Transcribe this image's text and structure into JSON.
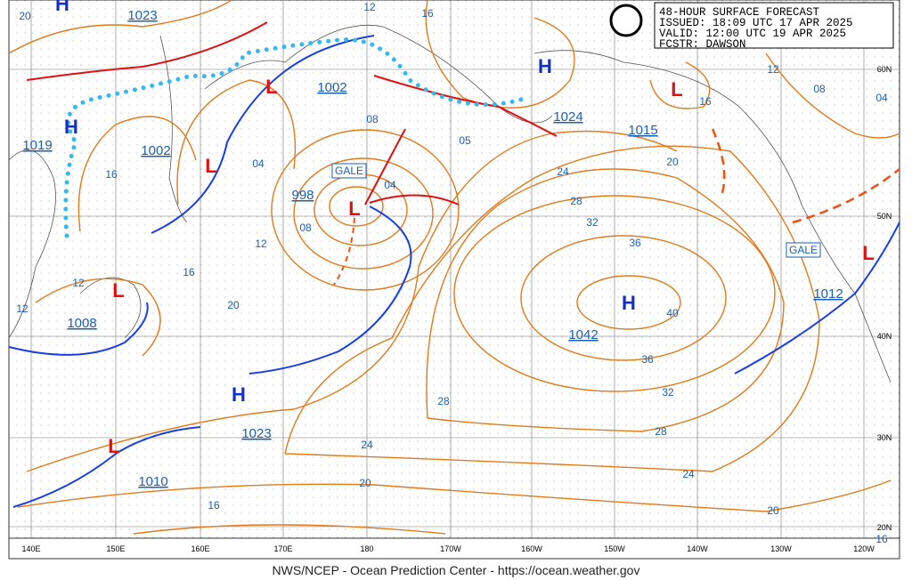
{
  "header": {
    "lines": [
      "48-HOUR SURFACE FORECAST",
      "ISSUED: 18:09 UTC 17 APR 2025",
      "VALID:  12:00 UTC 19 APR 2025",
      "FCSTR:  DAWSON"
    ]
  },
  "high_symbols": [
    "H",
    "H",
    "H",
    "H",
    "H"
  ],
  "low_symbols": [
    "L",
    "L",
    "L",
    "L",
    "L",
    "L",
    "L"
  ],
  "central_pressures": [
    "1023",
    "1019",
    "1002",
    "1002",
    "998",
    "1008",
    "1023",
    "1010",
    "1024",
    "1015",
    "1042",
    "1012"
  ],
  "isobar_labels": [
    "20",
    "12",
    "16",
    "16",
    "04",
    "08",
    "05",
    "08",
    "12",
    "04",
    "16",
    "12",
    "12",
    "20",
    "24",
    "28",
    "32",
    "36",
    "40",
    "36",
    "32",
    "28",
    "28",
    "24",
    "24",
    "20",
    "16",
    "20",
    "12",
    "08",
    "04",
    "16",
    "20",
    "16"
  ],
  "warnings": [
    "GALE",
    "GALE"
  ],
  "latitude_labels": [
    "60N",
    "50N",
    "40N",
    "30N",
    "20N"
  ],
  "longitude_labels": [
    "140E",
    "150E",
    "160E",
    "170E",
    "180",
    "170W",
    "160W",
    "150W",
    "140W",
    "130W",
    "120W"
  ],
  "footer": "NWS/NCEP - Ocean Prediction Center - https://ocean.weather.gov"
}
